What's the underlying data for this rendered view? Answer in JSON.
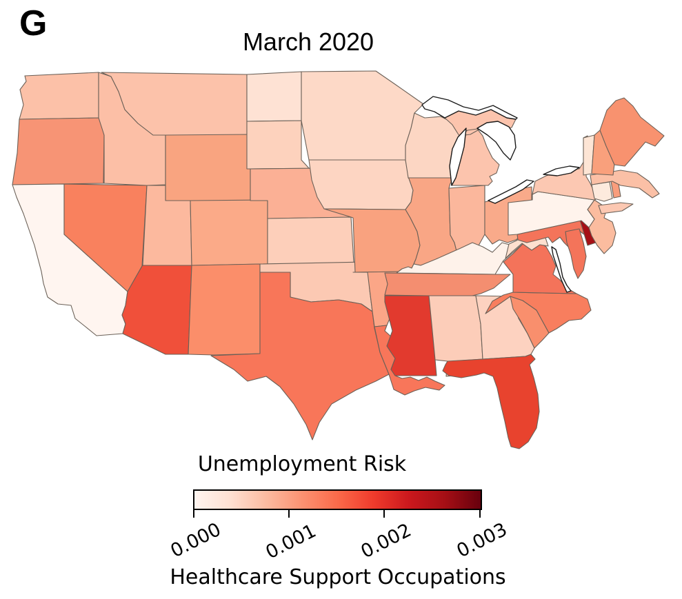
{
  "panel": {
    "label": "G"
  },
  "title": "March 2020",
  "colorbar": {
    "title": "Unemployment Risk",
    "xlabel": "Healthcare Support Occupations",
    "ticks": [
      "0.000",
      "0.001",
      "0.002",
      "0.003"
    ],
    "tick_values": [
      0.0,
      0.001,
      0.002,
      0.003
    ],
    "gradient_stops": [
      "#fff5f0",
      "#fee0d2",
      "#fcbba1",
      "#fc9272",
      "#fb6a4a",
      "#ef3b2c",
      "#cb181d",
      "#a50f15",
      "#67000d"
    ],
    "range": [
      0,
      0.003
    ]
  },
  "chart_data": {
    "type": "choropleth",
    "title": "March 2020",
    "colormap": "Reds",
    "legend_title": "Unemployment Risk",
    "xlabel": "Healthcare Support Occupations",
    "value_range": [
      0,
      0.003
    ],
    "region": "Contiguous United States",
    "states": [
      {
        "id": "WA",
        "name": "Washington",
        "value": 0.00065,
        "color": "#fcc1a8"
      },
      {
        "id": "OR",
        "name": "Oregon",
        "value": 0.0012,
        "color": "#f79475"
      },
      {
        "id": "CA",
        "name": "California",
        "value": 5e-05,
        "color": "#fff5f0"
      },
      {
        "id": "NV",
        "name": "Nevada",
        "value": 0.0015,
        "color": "#f9815e"
      },
      {
        "id": "ID",
        "name": "Idaho",
        "value": 0.0007,
        "color": "#fcbfa6"
      },
      {
        "id": "MT",
        "name": "Montana",
        "value": 0.00065,
        "color": "#fcc2aa"
      },
      {
        "id": "WY",
        "name": "Wyoming",
        "value": 0.0011,
        "color": "#f9a480"
      },
      {
        "id": "UT",
        "name": "Utah",
        "value": 0.0008,
        "color": "#fcb99e"
      },
      {
        "id": "CO",
        "name": "Colorado",
        "value": 0.001,
        "color": "#fbaa88"
      },
      {
        "id": "AZ",
        "name": "Arizona",
        "value": 0.002,
        "color": "#f0503a"
      },
      {
        "id": "NM",
        "name": "New Mexico",
        "value": 0.0015,
        "color": "#fb8e6a"
      },
      {
        "id": "ND",
        "name": "North Dakota",
        "value": 0.0003,
        "color": "#fee2d4"
      },
      {
        "id": "SD",
        "name": "South Dakota",
        "value": 0.00045,
        "color": "#fdd2bd"
      },
      {
        "id": "NE",
        "name": "Nebraska",
        "value": 0.0009,
        "color": "#fbb095"
      },
      {
        "id": "KS",
        "name": "Kansas",
        "value": 0.0005,
        "color": "#fdcfba"
      },
      {
        "id": "OK",
        "name": "Oklahoma",
        "value": 0.0006,
        "color": "#fcc9b3"
      },
      {
        "id": "TX",
        "name": "Texas",
        "value": 0.0017,
        "color": "#f87659"
      },
      {
        "id": "MN",
        "name": "Minnesota",
        "value": 0.0004,
        "color": "#fdd9c7"
      },
      {
        "id": "IA",
        "name": "Iowa",
        "value": 0.00045,
        "color": "#fdd5c2"
      },
      {
        "id": "MO",
        "name": "Missouri",
        "value": 0.0011,
        "color": "#f9a27f"
      },
      {
        "id": "AR",
        "name": "Arkansas",
        "value": 0.001,
        "color": "#fba687"
      },
      {
        "id": "LA",
        "name": "Louisiana",
        "value": 0.0017,
        "color": "#f8765a"
      },
      {
        "id": "WI",
        "name": "Wisconsin",
        "value": 0.0004,
        "color": "#fcd6c3"
      },
      {
        "id": "IL",
        "name": "Illinois",
        "value": 0.001,
        "color": "#f9a685"
      },
      {
        "id": "MI",
        "name": "Michigan",
        "value": 0.00065,
        "color": "#fcc4ad"
      },
      {
        "id": "IN",
        "name": "Indiana",
        "value": 0.0008,
        "color": "#fbb79c"
      },
      {
        "id": "OH",
        "name": "Ohio",
        "value": 0.001,
        "color": "#f9aa8a"
      },
      {
        "id": "KY",
        "name": "Kentucky",
        "value": 0.0001,
        "color": "#fef2ea"
      },
      {
        "id": "TN",
        "name": "Tennessee",
        "value": 0.0013,
        "color": "#f48e70"
      },
      {
        "id": "MS",
        "name": "Mississippi",
        "value": 0.0022,
        "color": "#e23a2e"
      },
      {
        "id": "AL",
        "name": "Alabama",
        "value": 0.0005,
        "color": "#fccdb9"
      },
      {
        "id": "GA",
        "name": "Georgia",
        "value": 0.0005,
        "color": "#fdd2c0"
      },
      {
        "id": "FL",
        "name": "Florida",
        "value": 0.0021,
        "color": "#e8432e"
      },
      {
        "id": "SC",
        "name": "South Carolina",
        "value": 0.0012,
        "color": "#f98f6d"
      },
      {
        "id": "NC",
        "name": "North Carolina",
        "value": 0.0015,
        "color": "#f87e5e"
      },
      {
        "id": "VA",
        "name": "Virginia",
        "value": 0.0016,
        "color": "#f4735a"
      },
      {
        "id": "WV",
        "name": "West Virginia",
        "value": 0.0003,
        "color": "#fde0cf"
      },
      {
        "id": "MD",
        "name": "Maryland",
        "value": 0.0016,
        "color": "#f4745a"
      },
      {
        "id": "DE",
        "name": "Delaware",
        "value": 0.0028,
        "color": "#a50f15"
      },
      {
        "id": "NJ",
        "name": "New Jersey",
        "value": 0.00075,
        "color": "#fbbc9f"
      },
      {
        "id": "PA",
        "name": "Pennsylvania",
        "value": 8e-05,
        "color": "#fff3ec"
      },
      {
        "id": "NY",
        "name": "New York",
        "value": 0.0006,
        "color": "#fcc8b2"
      },
      {
        "id": "CT",
        "name": "Connecticut",
        "value": 0.0002,
        "color": "#fdeadd"
      },
      {
        "id": "RI",
        "name": "Rhode Island",
        "value": 0.0011,
        "color": "#f99d7c"
      },
      {
        "id": "MA",
        "name": "Massachusetts",
        "value": 0.0007,
        "color": "#fbc0a6"
      },
      {
        "id": "VT",
        "name": "Vermont",
        "value": 0.00025,
        "color": "#fde5d5"
      },
      {
        "id": "NH",
        "name": "New Hampshire",
        "value": 0.0011,
        "color": "#f9a07c"
      },
      {
        "id": "ME",
        "name": "Maine",
        "value": 0.0013,
        "color": "#f8926f"
      }
    ]
  }
}
